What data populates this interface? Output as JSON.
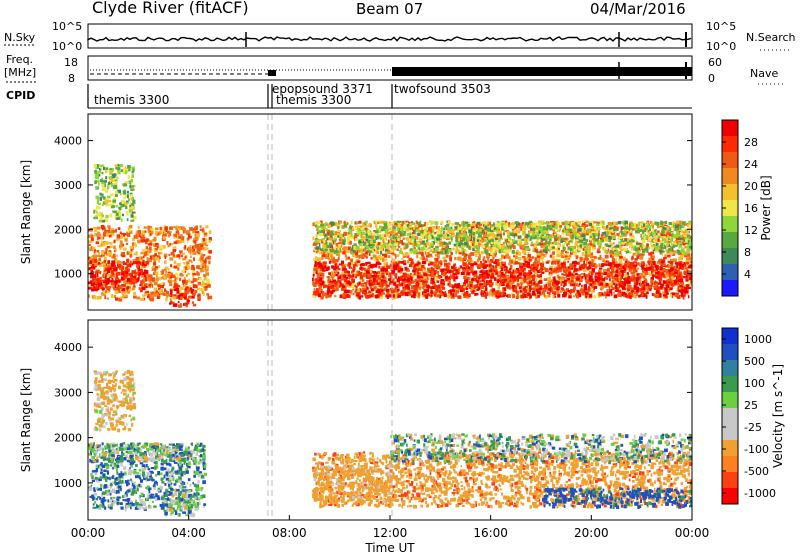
{
  "header": {
    "station": "Clyde River (fitACF)",
    "beam": "Beam 07",
    "date": "04/Mar/2016"
  },
  "strip_labels": {
    "nsky": "N.Sky",
    "nsearch": "N.Search",
    "nsky_ticks": [
      "10^5",
      "10^0"
    ],
    "nsearch_ticks": [
      "10^5",
      "10^0"
    ],
    "freq_label": [
      "Freq.",
      "[MHz]"
    ],
    "freq_ticks": [
      "18",
      "8"
    ],
    "nave_label": "Nave",
    "nave_ticks": [
      "60",
      "0"
    ],
    "cpid": "CPID"
  },
  "cpid_segments": [
    {
      "name": "themis 3300",
      "start_hr": 0.0
    },
    {
      "name": "epopsound 3371",
      "start_hr": 6.9
    },
    {
      "name": "themis 3300",
      "start_hr": 7.1
    },
    {
      "name": "twofsound 3503",
      "start_hr": 12.0
    }
  ],
  "colors": {
    "power_scale": [
      "#1a1aff",
      "#2e5fb3",
      "#3d8a57",
      "#57a840",
      "#8fd63a",
      "#f0e64a",
      "#f5c02e",
      "#f08a1e",
      "#f05a14",
      "#ff2a00",
      "#ee0000"
    ],
    "velocity_scale": [
      "#ff0000",
      "#ff4010",
      "#ff8020",
      "#f0a030",
      "#c8c8c8",
      "#c8c8c8",
      "#6ad040",
      "#3a9a50",
      "#3080a0",
      "#2050c0",
      "#1030d0"
    ]
  },
  "chart_data": [
    {
      "type": "heatmap",
      "panel": "power",
      "xlabel": "",
      "ylabel": "Slant Range [km]",
      "xlim_hours": [
        0,
        24
      ],
      "ylim": [
        180,
        4600
      ],
      "y_ticks": [
        1000,
        2000,
        3000,
        4000
      ],
      "colorbar": {
        "label": "Power [dB]",
        "ticks": [
          4,
          8,
          12,
          16,
          20,
          24,
          28
        ]
      },
      "echo_regions": [
        {
          "t_start": 0.0,
          "t_end": 4.8,
          "r_min": 450,
          "r_max": 2100,
          "value_db": 22
        },
        {
          "t_start": 0.0,
          "t_end": 2.3,
          "r_min": 650,
          "r_max": 1300,
          "value_db": 30
        },
        {
          "t_start": 3.2,
          "t_end": 4.4,
          "r_min": 300,
          "r_max": 700,
          "value_db": 28
        },
        {
          "t_start": 0.2,
          "t_end": 1.8,
          "r_min": 2200,
          "r_max": 3500,
          "value_db": 12
        },
        {
          "t_start": 8.9,
          "t_end": 24.0,
          "r_min": 500,
          "r_max": 2200,
          "value_db": 22
        },
        {
          "t_start": 8.9,
          "t_end": 24.0,
          "r_min": 500,
          "r_max": 1300,
          "value_db": 29
        },
        {
          "t_start": 9.0,
          "t_end": 24.0,
          "r_min": 1500,
          "r_max": 2200,
          "value_db": 12
        }
      ]
    },
    {
      "type": "heatmap",
      "panel": "velocity",
      "xlabel": "Time UT",
      "ylabel": "Slant Range [km]",
      "xlim_hours": [
        0,
        24
      ],
      "ylim": [
        180,
        4600
      ],
      "x_tick_labels": [
        "00:00",
        "04:00",
        "08:00",
        "12:00",
        "16:00",
        "20:00",
        "00:00"
      ],
      "y_ticks": [
        1000,
        2000,
        3000,
        4000
      ],
      "colorbar": {
        "label": "Velocity [m s^-1]",
        "ticks": [
          1000,
          500,
          100,
          25,
          -25,
          -100,
          -500,
          -1000
        ]
      },
      "echo_regions": [
        {
          "t_start": 0.0,
          "t_end": 4.6,
          "r_min": 450,
          "r_max": 1900,
          "value_ms": 60
        },
        {
          "t_start": 0.0,
          "t_end": 4.6,
          "r_min": 1500,
          "r_max": 1900,
          "value_ms": 0
        },
        {
          "t_start": 3.0,
          "t_end": 4.3,
          "r_min": 300,
          "r_max": 900,
          "value_ms": 0
        },
        {
          "t_start": 0.2,
          "t_end": 1.8,
          "r_min": 2200,
          "r_max": 3500,
          "value_ms": -150
        },
        {
          "t_start": 8.9,
          "t_end": 24.0,
          "r_min": 500,
          "r_max": 1700,
          "value_ms": -400
        },
        {
          "t_start": 8.9,
          "t_end": 12.0,
          "r_min": 600,
          "r_max": 1400,
          "value_ms": -200
        },
        {
          "t_start": 12.0,
          "t_end": 24.0,
          "r_min": 1500,
          "r_max": 2100,
          "value_ms": 0
        },
        {
          "t_start": 18.0,
          "t_end": 24.0,
          "r_min": 500,
          "r_max": 900,
          "value_ms": 200
        }
      ]
    }
  ]
}
